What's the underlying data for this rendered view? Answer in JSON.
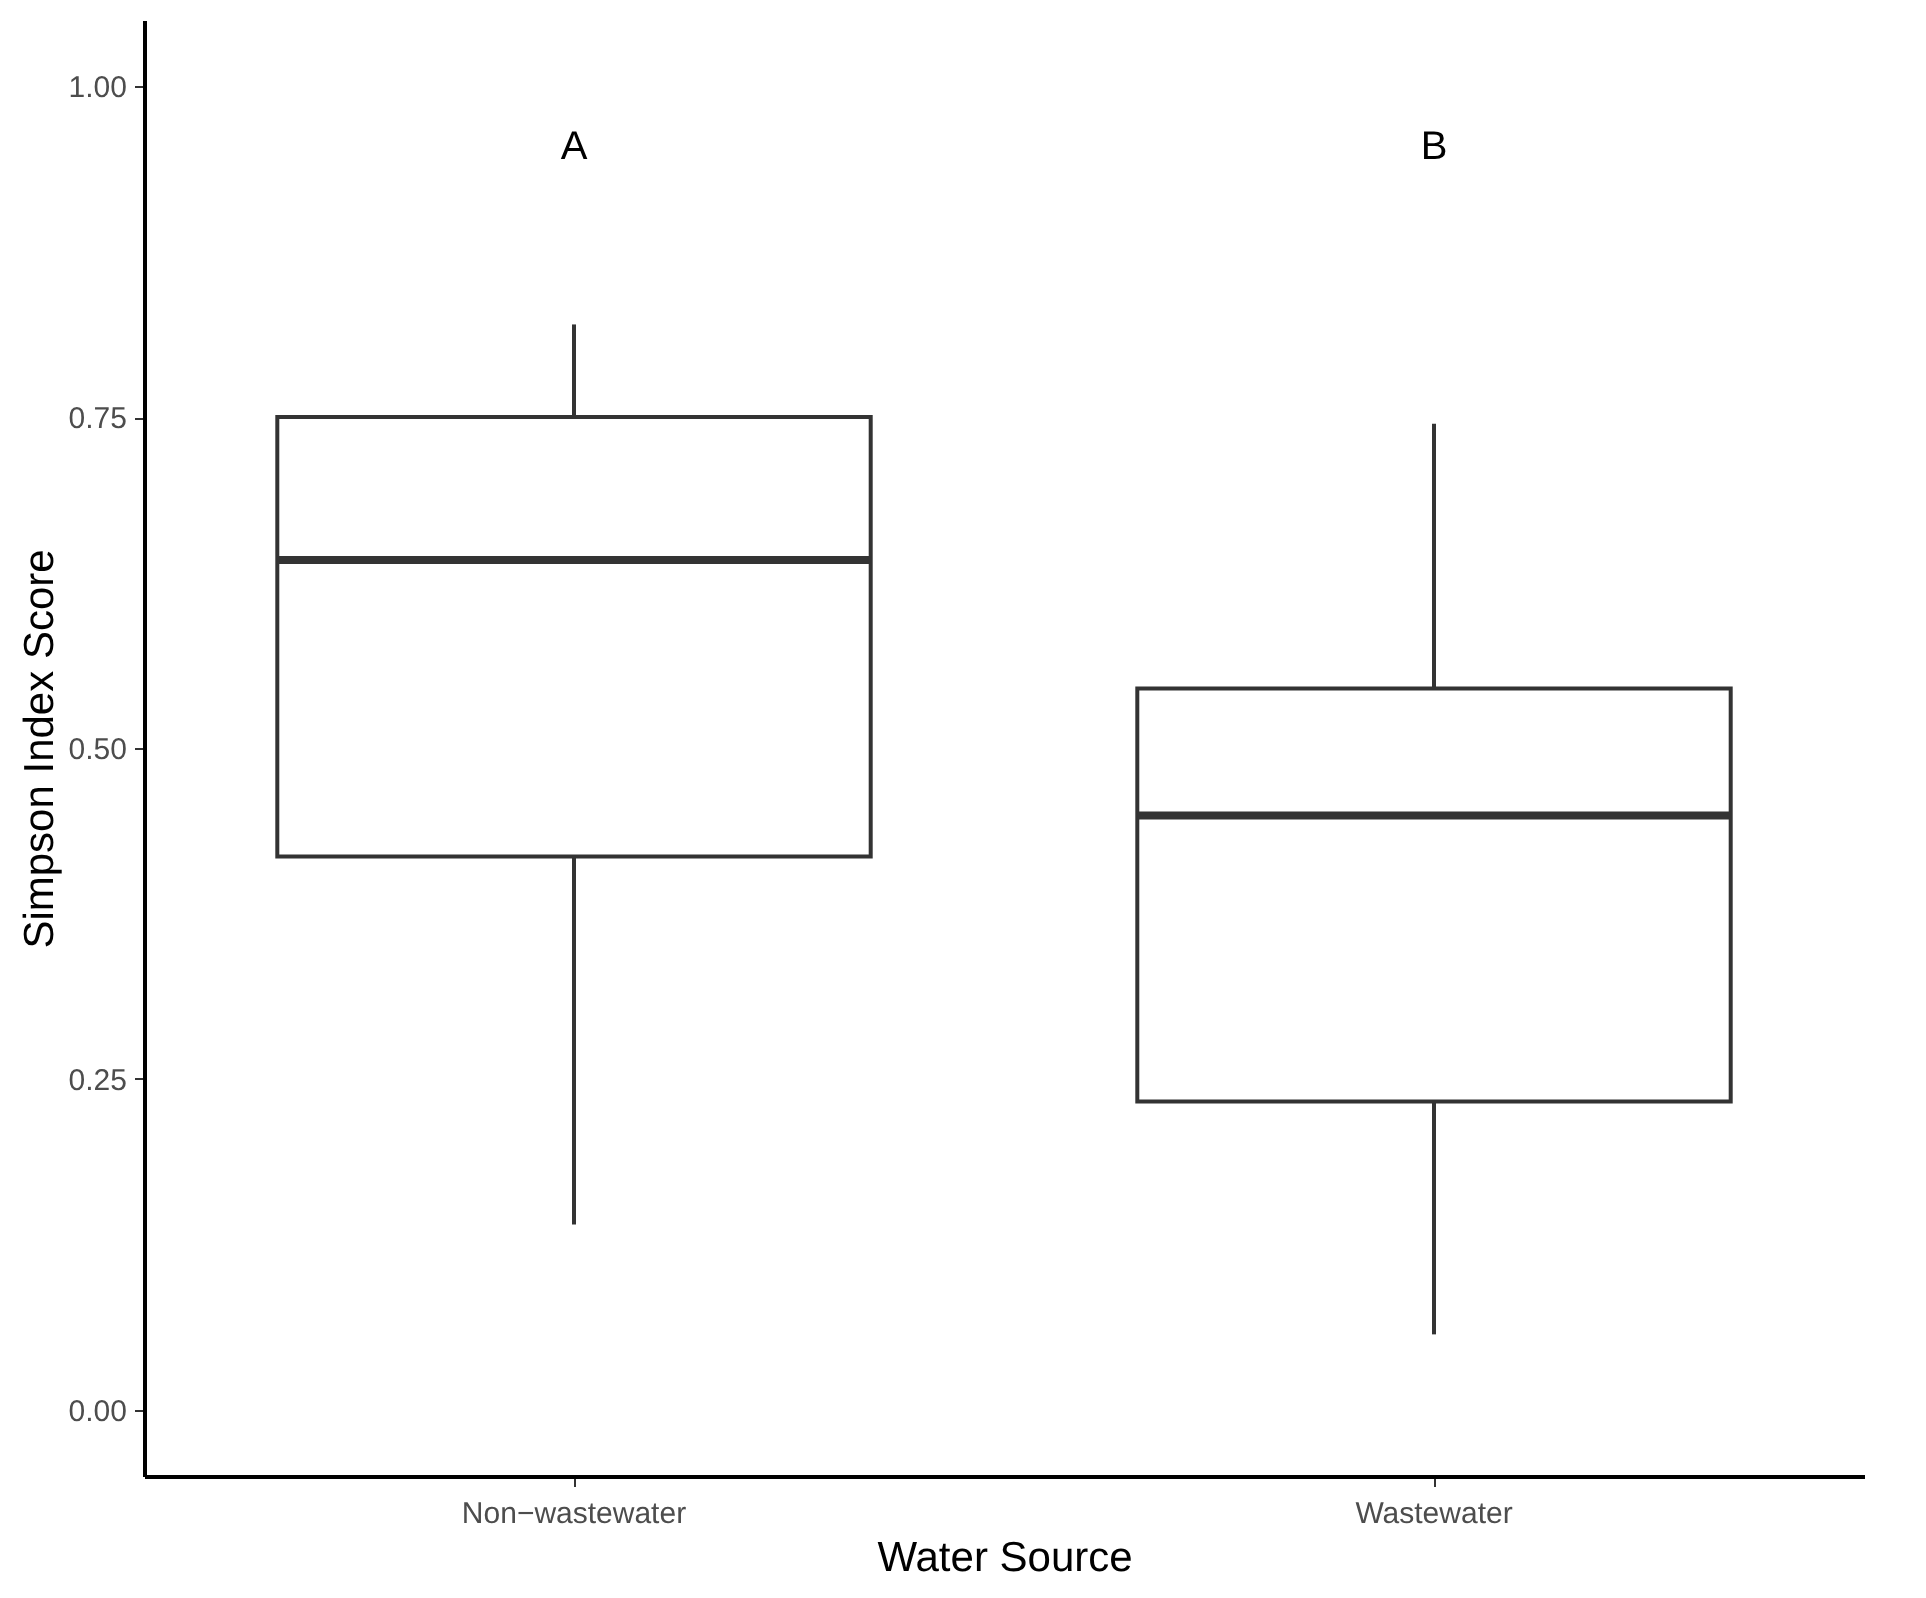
{
  "chart_data": {
    "type": "box",
    "xlabel": "Water Source",
    "ylabel": "Simpson Index Score",
    "categories": [
      "Non−wastewater",
      "Wastewater"
    ],
    "boxes": [
      {
        "low": 0.14,
        "q1": 0.418,
        "median": 0.642,
        "q3": 0.75,
        "high": 0.82
      },
      {
        "low": 0.057,
        "q1": 0.233,
        "median": 0.449,
        "q3": 0.545,
        "high": 0.745
      }
    ],
    "ylim": [
      -0.05,
      1.05
    ],
    "yticks": [
      {
        "value": 0,
        "label": "0.00"
      },
      {
        "value": 0.25,
        "label": "0.25"
      },
      {
        "value": 0.5,
        "label": "0.50"
      },
      {
        "value": 0.75,
        "label": "0.75"
      },
      {
        "value": 1,
        "label": "1.00"
      }
    ],
    "annotations": [
      "A",
      "B"
    ]
  }
}
